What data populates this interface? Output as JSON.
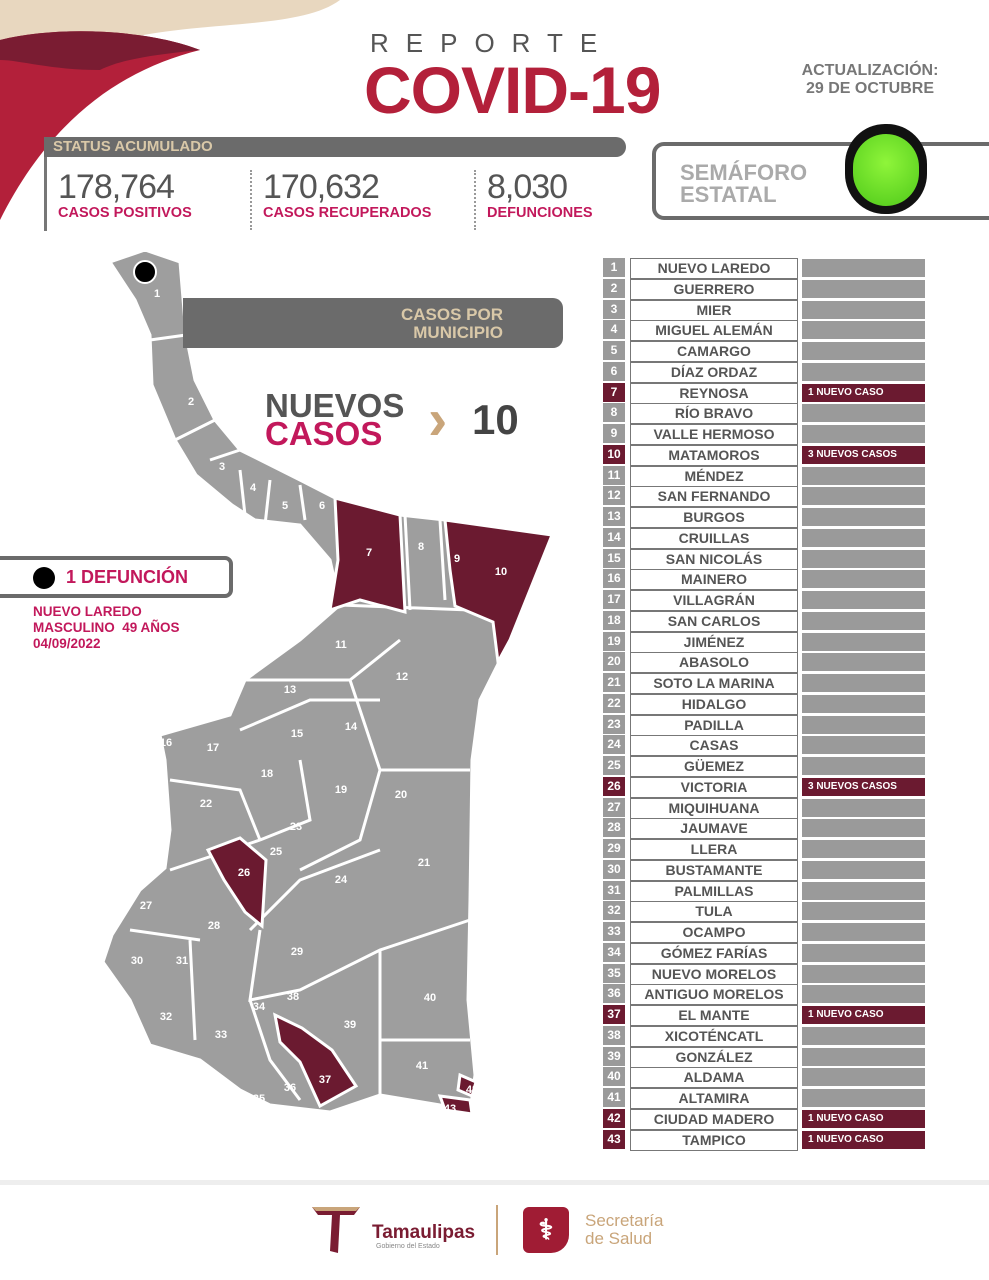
{
  "header": {
    "reporte": "REPORTE",
    "title": "COVID-19",
    "update_label": "ACTUALIZACIÓN:",
    "update_date": "29 DE OCTUBRE"
  },
  "status": {
    "title": "STATUS ACUMULADO",
    "stats": [
      {
        "value": "178,764",
        "label": "CASOS POSITIVOS"
      },
      {
        "value": "170,632",
        "label": "CASOS RECUPERADOS"
      },
      {
        "value": "8,030",
        "label": "DEFUNCIONES"
      }
    ]
  },
  "semaforo": {
    "line1": "SEMÁFORO",
    "line2": "ESTATAL",
    "color": "green",
    "color_hex": "#5fd626"
  },
  "map": {
    "title_line1": "CASOS POR",
    "title_line2": "MUNICIPIO",
    "highlighted": [
      7,
      10,
      26,
      37,
      42,
      43
    ],
    "death_marker_municipality": 1
  },
  "nuevos": {
    "line1": "NUEVOS",
    "line2": "CASOS",
    "count": "10"
  },
  "defuncion": {
    "title": "1 DEFUNCIÓN",
    "municipality": "NUEVO LAREDO",
    "detail": "MASCULINO  49 AÑOS",
    "date": "04/09/2022"
  },
  "colors": {
    "accent": "#b3203a",
    "maroon": "#6b1a30",
    "gray": "#9a9a9a",
    "gold": "#c9a57a"
  },
  "municipios": [
    {
      "n": "1",
      "name": "NUEVO LAREDO",
      "cases": ""
    },
    {
      "n": "2",
      "name": "GUERRERO",
      "cases": ""
    },
    {
      "n": "3",
      "name": "MIER",
      "cases": ""
    },
    {
      "n": "4",
      "name": "MIGUEL ALEMÁN",
      "cases": ""
    },
    {
      "n": "5",
      "name": "CAMARGO",
      "cases": ""
    },
    {
      "n": "6",
      "name": "DÍAZ ORDAZ",
      "cases": ""
    },
    {
      "n": "7",
      "name": "REYNOSA",
      "cases": "1 NUEVO CASO"
    },
    {
      "n": "8",
      "name": "RÍO BRAVO",
      "cases": ""
    },
    {
      "n": "9",
      "name": "VALLE HERMOSO",
      "cases": ""
    },
    {
      "n": "10",
      "name": "MATAMOROS",
      "cases": "3 NUEVOS CASOS"
    },
    {
      "n": "11",
      "name": "MÉNDEZ",
      "cases": ""
    },
    {
      "n": "12",
      "name": "SAN FERNANDO",
      "cases": ""
    },
    {
      "n": "13",
      "name": "BURGOS",
      "cases": ""
    },
    {
      "n": "14",
      "name": "CRUILLAS",
      "cases": ""
    },
    {
      "n": "15",
      "name": "SAN NICOLÁS",
      "cases": ""
    },
    {
      "n": "16",
      "name": "MAINERO",
      "cases": ""
    },
    {
      "n": "17",
      "name": "VILLAGRÁN",
      "cases": ""
    },
    {
      "n": "18",
      "name": "SAN CARLOS",
      "cases": ""
    },
    {
      "n": "19",
      "name": "JIMÉNEZ",
      "cases": ""
    },
    {
      "n": "20",
      "name": "ABASOLO",
      "cases": ""
    },
    {
      "n": "21",
      "name": "SOTO LA MARINA",
      "cases": ""
    },
    {
      "n": "22",
      "name": "HIDALGO",
      "cases": ""
    },
    {
      "n": "23",
      "name": "PADILLA",
      "cases": ""
    },
    {
      "n": "24",
      "name": "CASAS",
      "cases": ""
    },
    {
      "n": "25",
      "name": "GÜEMEZ",
      "cases": ""
    },
    {
      "n": "26",
      "name": "VICTORIA",
      "cases": "3 NUEVOS CASOS"
    },
    {
      "n": "27",
      "name": "MIQUIHUANA",
      "cases": ""
    },
    {
      "n": "28",
      "name": "JAUMAVE",
      "cases": ""
    },
    {
      "n": "29",
      "name": "LLERA",
      "cases": ""
    },
    {
      "n": "30",
      "name": "BUSTAMANTE",
      "cases": ""
    },
    {
      "n": "31",
      "name": "PALMILLAS",
      "cases": ""
    },
    {
      "n": "32",
      "name": "TULA",
      "cases": ""
    },
    {
      "n": "33",
      "name": "OCAMPO",
      "cases": ""
    },
    {
      "n": "34",
      "name": "GÓMEZ FARÍAS",
      "cases": ""
    },
    {
      "n": "35",
      "name": "NUEVO MORELOS",
      "cases": ""
    },
    {
      "n": "36",
      "name": "ANTIGUO MORELOS",
      "cases": ""
    },
    {
      "n": "37",
      "name": "EL MANTE",
      "cases": "1 NUEVO CASO"
    },
    {
      "n": "38",
      "name": "XICOTÉNCATL",
      "cases": ""
    },
    {
      "n": "39",
      "name": "GONZÁLEZ",
      "cases": ""
    },
    {
      "n": "40",
      "name": "ALDAMA",
      "cases": ""
    },
    {
      "n": "41",
      "name": "ALTAMIRA",
      "cases": ""
    },
    {
      "n": "42",
      "name": "CIUDAD MADERO",
      "cases": "1 NUEVO CASO"
    },
    {
      "n": "43",
      "name": "TAMPICO",
      "cases": "1 NUEVO CASO"
    }
  ],
  "footer": {
    "logo1": "Tamaulipas",
    "logo1_sub": "Gobierno del Estado",
    "logo2_line1": "Secretaría",
    "logo2_line2": "de Salud"
  }
}
